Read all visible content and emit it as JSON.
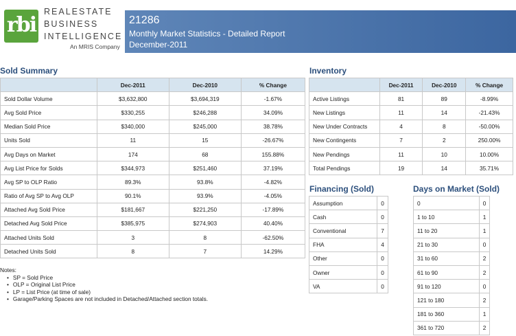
{
  "logo": {
    "mark": "rbi",
    "line1": "REALESTATE",
    "line2": "BUSINESS",
    "line3": "INTELLIGENCE",
    "sub": "An MRIS Company",
    "mark_color": "#5aa43c"
  },
  "banner": {
    "zip": "21286",
    "title": "Monthly Market Statistics - Detailed Report",
    "period": "December-2011"
  },
  "sold_summary": {
    "title": "Sold Summary",
    "columns": [
      "Dec-2011",
      "Dec-2010",
      "% Change"
    ],
    "rows": [
      {
        "label": "Sold Dollar Volume",
        "a": "$3,632,800",
        "b": "$3,694,319",
        "c": "-1.67%"
      },
      {
        "label": "Avg Sold Price",
        "a": "$330,255",
        "b": "$246,288",
        "c": "34.09%"
      },
      {
        "label": "Median Sold Price",
        "a": "$340,000",
        "b": "$245,000",
        "c": "38.78%"
      },
      {
        "label": "Units Sold",
        "a": "11",
        "b": "15",
        "c": "-26.67%"
      },
      {
        "label": "Avg Days on Market",
        "a": "174",
        "b": "68",
        "c": "155.88%"
      },
      {
        "label": "Avg List Price for Solds",
        "a": "$344,973",
        "b": "$251,460",
        "c": "37.19%"
      },
      {
        "label": "Avg SP to OLP Ratio",
        "a": "89.3%",
        "b": "93.8%",
        "c": "-4.82%"
      },
      {
        "label": "Ratio of Avg SP to Avg OLP",
        "a": "90.1%",
        "b": "93.9%",
        "c": "-4.05%"
      },
      {
        "label": "Attached Avg Sold Price",
        "a": "$181,667",
        "b": "$221,250",
        "c": "-17.89%"
      },
      {
        "label": "Detached Avg Sold Price",
        "a": "$385,975",
        "b": "$274,903",
        "c": "40.40%"
      },
      {
        "label": "Attached Units Sold",
        "a": "3",
        "b": "8",
        "c": "-62.50%"
      },
      {
        "label": "Detached Units Sold",
        "a": "8",
        "b": "7",
        "c": "14.29%"
      }
    ]
  },
  "inventory": {
    "title": "Inventory",
    "columns": [
      "Dec-2011",
      "Dec-2010",
      "% Change"
    ],
    "rows": [
      {
        "label": "Active Listings",
        "a": "81",
        "b": "89",
        "c": "-8.99%"
      },
      {
        "label": "New Listings",
        "a": "11",
        "b": "14",
        "c": "-21.43%"
      },
      {
        "label": "New Under Contracts",
        "a": "4",
        "b": "8",
        "c": "-50.00%"
      },
      {
        "label": "New Contingents",
        "a": "7",
        "b": "2",
        "c": "250.00%"
      },
      {
        "label": "New Pendings",
        "a": "11",
        "b": "10",
        "c": "10.00%"
      },
      {
        "label": "Total Pendings",
        "a": "19",
        "b": "14",
        "c": "35.71%"
      }
    ]
  },
  "financing": {
    "title": "Financing (Sold)",
    "rows": [
      {
        "label": "Assumption",
        "v": "0"
      },
      {
        "label": "Cash",
        "v": "0"
      },
      {
        "label": "Conventional",
        "v": "7"
      },
      {
        "label": "FHA",
        "v": "4"
      },
      {
        "label": "Other",
        "v": "0"
      },
      {
        "label": "Owner",
        "v": "0"
      },
      {
        "label": "VA",
        "v": "0"
      }
    ]
  },
  "days_on_market": {
    "title": "Days on Market (Sold)",
    "rows": [
      {
        "label": "0",
        "v": "0"
      },
      {
        "label": "1 to 10",
        "v": "1"
      },
      {
        "label": "11 to 20",
        "v": "1"
      },
      {
        "label": "21 to 30",
        "v": "0"
      },
      {
        "label": "31 to 60",
        "v": "2"
      },
      {
        "label": "61 to 90",
        "v": "2"
      },
      {
        "label": "91 to 120",
        "v": "0"
      },
      {
        "label": "121 to 180",
        "v": "2"
      },
      {
        "label": "181 to 360",
        "v": "1"
      },
      {
        "label": "361 to 720",
        "v": "2"
      }
    ]
  },
  "notes": {
    "heading": "Notes:",
    "items": [
      "SP = Sold Price",
      "OLP = Original List Price",
      "LP = List Price (at time of sale)",
      "Garage/Parking Spaces are not included in Detached/Attached section totals."
    ]
  }
}
